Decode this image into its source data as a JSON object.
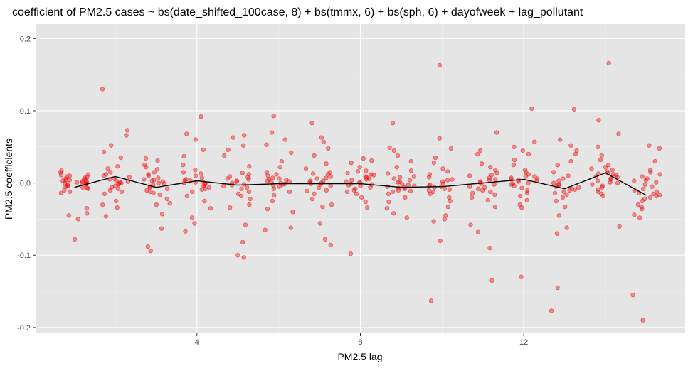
{
  "chart_data": {
    "type": "scatter",
    "title": "coefficient of PM2.5 cases ~ bs(date_shifted_100case, 8) + bs(tmmx, 6) + bs(sph, 6) +      dayofweek + lag_pollutant",
    "xlabel": "PM2.5 lag",
    "ylabel": "PM2.5 coefficients",
    "xlim": [
      0.05,
      15.95
    ],
    "ylim": [
      -0.208,
      0.22
    ],
    "x_ticks": [
      4,
      8,
      12
    ],
    "x_tick_labels": [
      "4",
      "8",
      "12"
    ],
    "y_ticks": [
      -0.2,
      -0.1,
      0.0,
      0.1,
      0.2
    ],
    "y_tick_labels": [
      "-0.2",
      "-0.1",
      "0.0",
      "0.1",
      "0.2"
    ],
    "grid": true,
    "colors": {
      "panel": "#e5e5e5",
      "grid_major": "#ffffff",
      "points": "#f8000066",
      "point_stroke": "#e8000080",
      "mean_line": "#000000",
      "zero_line": "#a6a6a6"
    },
    "points": [
      {
        "lag": 1,
        "values": [
          0.003,
          0.005,
          0.008,
          0.011,
          0.015,
          0.017,
          0.0,
          0.001,
          -0.002,
          0.002,
          0.004,
          0.006,
          -0.004,
          -0.006,
          -0.008,
          -0.01,
          -0.012,
          -0.014,
          -0.003,
          0.0,
          0.007,
          0.004,
          -0.001,
          0.009,
          -0.035,
          -0.042,
          -0.045,
          -0.05,
          -0.078,
          -0.005,
          0.003,
          0.01,
          0.012,
          -0.007,
          0.001
        ]
      },
      {
        "lag": 2,
        "values": [
          0.13,
          0.073,
          0.066,
          0.052,
          0.043,
          0.035,
          0.023,
          0.02,
          0.012,
          0.008,
          0.005,
          0.003,
          0.0,
          -0.002,
          -0.004,
          -0.006,
          -0.008,
          -0.01,
          -0.012,
          -0.015,
          -0.025,
          -0.03,
          -0.034,
          -0.046,
          0.001,
          0.002,
          0.015,
          -0.001,
          0.006,
          0.01
        ]
      },
      {
        "lag": 3,
        "values": [
          0.034,
          0.031,
          0.025,
          0.022,
          0.015,
          0.012,
          0.01,
          0.007,
          0.005,
          0.002,
          0.0,
          -0.003,
          -0.005,
          -0.008,
          -0.01,
          -0.014,
          -0.016,
          -0.022,
          -0.028,
          -0.03,
          -0.043,
          -0.063,
          -0.088,
          -0.094,
          0.004,
          -0.001,
          0.019,
          -0.006,
          0.003,
          -0.012
        ]
      },
      {
        "lag": 4,
        "values": [
          0.092,
          0.068,
          0.06,
          0.046,
          0.037,
          0.025,
          0.018,
          0.013,
          0.01,
          0.007,
          0.004,
          0.002,
          0.0,
          -0.002,
          -0.004,
          -0.006,
          -0.009,
          -0.012,
          -0.018,
          -0.025,
          -0.035,
          -0.048,
          -0.056,
          -0.067,
          0.005,
          0.003,
          -0.001,
          0.015,
          0.001,
          -0.008
        ]
      },
      {
        "lag": 5,
        "values": [
          0.066,
          0.063,
          0.052,
          0.046,
          0.038,
          0.023,
          0.014,
          0.012,
          0.009,
          0.005,
          0.003,
          0.0,
          -0.003,
          -0.006,
          -0.008,
          -0.012,
          -0.015,
          -0.018,
          -0.022,
          -0.03,
          -0.034,
          -0.058,
          -0.082,
          -0.1,
          -0.103,
          0.002,
          -0.002,
          0.008,
          -0.004,
          0.006
        ]
      },
      {
        "lag": 6,
        "values": [
          0.093,
          0.07,
          0.06,
          0.053,
          0.042,
          0.03,
          0.022,
          0.015,
          0.01,
          0.007,
          0.005,
          0.003,
          0.001,
          -0.001,
          -0.003,
          -0.005,
          -0.008,
          -0.012,
          -0.017,
          -0.025,
          -0.036,
          -0.04,
          -0.062,
          -0.065,
          0.004,
          0.002,
          -0.002,
          0.012,
          0.006,
          0.0
        ]
      },
      {
        "lag": 7,
        "values": [
          0.083,
          0.063,
          0.057,
          0.048,
          0.038,
          0.027,
          0.02,
          0.015,
          0.012,
          0.009,
          0.006,
          0.003,
          0.001,
          -0.002,
          -0.004,
          -0.007,
          -0.01,
          -0.015,
          -0.022,
          -0.03,
          -0.033,
          -0.056,
          -0.078,
          -0.086,
          0.003,
          0.0,
          -0.001,
          0.013,
          0.007,
          -0.011
        ]
      },
      {
        "lag": 8,
        "values": [
          0.034,
          0.031,
          0.028,
          0.022,
          0.017,
          0.014,
          0.011,
          0.008,
          0.006,
          0.004,
          0.002,
          0.0,
          -0.002,
          -0.004,
          -0.006,
          -0.008,
          -0.01,
          -0.012,
          -0.015,
          -0.02,
          -0.026,
          -0.034,
          -0.098,
          0.005,
          0.001,
          -0.001,
          0.016,
          0.009,
          -0.003,
          0.012
        ]
      },
      {
        "lag": 9,
        "values": [
          0.083,
          0.049,
          0.045,
          0.038,
          0.03,
          0.022,
          0.017,
          0.013,
          0.009,
          0.006,
          0.004,
          0.001,
          -0.002,
          -0.004,
          -0.006,
          -0.008,
          -0.01,
          -0.012,
          -0.015,
          -0.02,
          -0.026,
          -0.035,
          -0.042,
          -0.048,
          -0.005,
          -0.007,
          0.002,
          -0.003,
          0.008,
          -0.011
        ]
      },
      {
        "lag": 10,
        "values": [
          0.163,
          0.062,
          0.048,
          0.035,
          0.028,
          0.02,
          0.016,
          0.012,
          0.008,
          0.005,
          0.002,
          -0.001,
          -0.003,
          -0.005,
          -0.008,
          -0.01,
          -0.012,
          -0.015,
          -0.02,
          -0.025,
          -0.033,
          -0.045,
          -0.05,
          -0.053,
          -0.08,
          -0.163,
          -0.004,
          -0.006,
          0.004,
          -0.009
        ]
      },
      {
        "lag": 11,
        "values": [
          0.07,
          0.045,
          0.04,
          0.027,
          0.022,
          0.018,
          0.014,
          0.01,
          0.007,
          0.004,
          0.001,
          -0.002,
          -0.005,
          -0.008,
          -0.01,
          -0.012,
          -0.014,
          -0.016,
          -0.02,
          -0.024,
          -0.033,
          -0.058,
          -0.068,
          -0.09,
          -0.135,
          0.002,
          -0.001,
          0.011,
          -0.006,
          0.005
        ]
      },
      {
        "lag": 12,
        "values": [
          0.103,
          0.057,
          0.05,
          0.045,
          0.04,
          0.032,
          0.025,
          0.018,
          0.012,
          0.009,
          0.006,
          0.004,
          0.002,
          0.0,
          -0.002,
          -0.004,
          -0.007,
          -0.01,
          -0.014,
          -0.018,
          -0.024,
          -0.03,
          -0.034,
          -0.13,
          0.007,
          0.003,
          0.009,
          -0.001,
          0.015,
          0.005
        ]
      },
      {
        "lag": 13,
        "values": [
          0.102,
          0.06,
          0.052,
          0.045,
          0.04,
          0.03,
          0.025,
          0.015,
          0.01,
          0.006,
          0.003,
          0.0,
          -0.003,
          -0.006,
          -0.009,
          -0.012,
          -0.014,
          -0.016,
          -0.02,
          -0.025,
          -0.033,
          -0.045,
          -0.062,
          -0.07,
          -0.145,
          -0.177,
          -0.008,
          -0.01,
          -0.002,
          -0.005
        ]
      },
      {
        "lag": 14,
        "values": [
          0.166,
          0.087,
          0.068,
          0.05,
          0.038,
          0.032,
          0.025,
          0.02,
          0.016,
          0.012,
          0.009,
          0.006,
          0.003,
          0.0,
          -0.002,
          -0.004,
          -0.006,
          -0.009,
          -0.012,
          -0.015,
          -0.018,
          -0.06,
          0.014,
          0.011,
          0.018,
          0.005,
          0.022,
          0.001,
          0.013,
          0.008
        ]
      },
      {
        "lag": 15,
        "values": [
          0.052,
          0.048,
          0.03,
          0.018,
          0.015,
          0.012,
          0.009,
          0.006,
          0.003,
          0.001,
          -0.002,
          -0.005,
          -0.008,
          -0.012,
          -0.015,
          -0.018,
          -0.022,
          -0.025,
          -0.03,
          -0.033,
          -0.036,
          -0.044,
          -0.048,
          -0.155,
          -0.19,
          -0.017,
          -0.02,
          -0.01,
          0.004,
          -0.014
        ]
      }
    ],
    "series": [
      {
        "type": "line",
        "x": [
          1,
          2,
          3,
          4,
          5,
          6,
          7,
          8,
          9,
          10,
          11,
          12,
          13,
          14,
          15
        ],
        "values": [
          -0.006,
          0.009,
          -0.006,
          0.003,
          -0.003,
          -0.001,
          -0.001,
          -0.001,
          -0.006,
          -0.005,
          0.0,
          0.005,
          -0.008,
          0.014,
          -0.017
        ]
      }
    ]
  }
}
